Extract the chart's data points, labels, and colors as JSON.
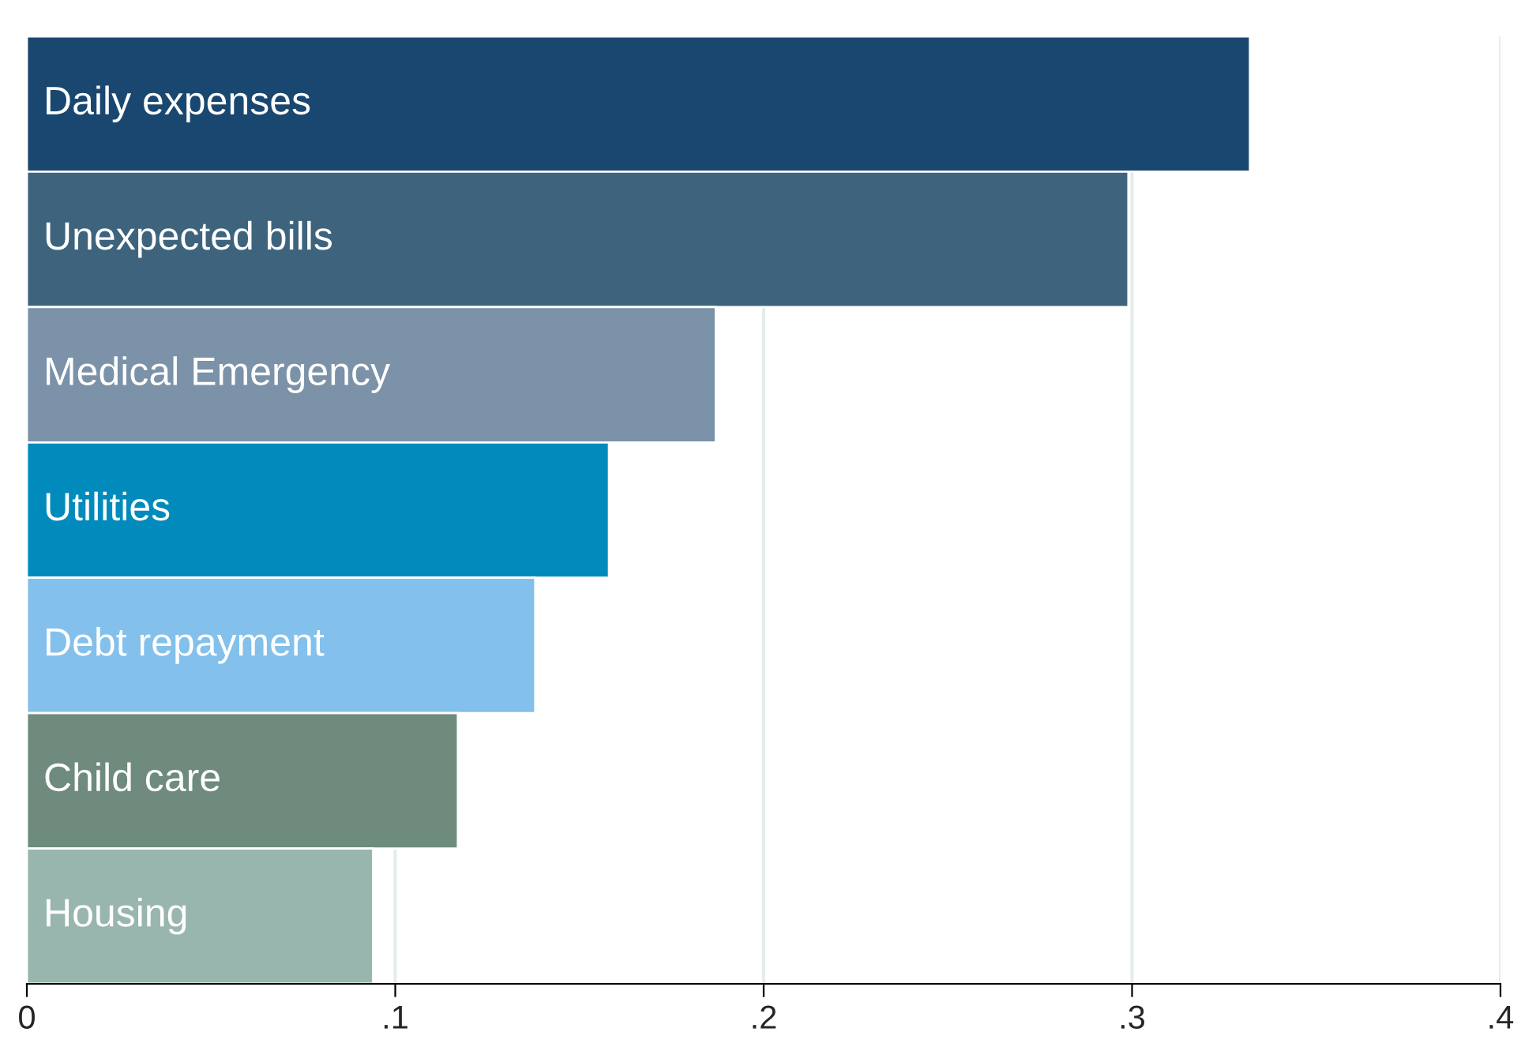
{
  "chart_data": {
    "type": "bar",
    "orientation": "horizontal",
    "categories": [
      "Daily expenses",
      "Unexpected bills",
      "Medical Emergency",
      "Utilities",
      "Debt repayment",
      "Child care",
      "Housing"
    ],
    "values": [
      0.332,
      0.299,
      0.187,
      0.158,
      0.138,
      0.117,
      0.094
    ],
    "colors": [
      "#1a476f",
      "#3e647d",
      "#7b92a8",
      "#008bbc",
      "#83c0eb",
      "#6e8b7d",
      "#98b6ae"
    ],
    "xlim": [
      0,
      0.4
    ],
    "xticks": [
      0,
      {
        "value": 0.1,
        "label": ".1"
      },
      {
        "value": 0.2,
        "label": ".2"
      },
      {
        "value": 0.3,
        "label": ".3"
      },
      {
        "value": 0.4,
        "label": ".4"
      }
    ],
    "grid": "x"
  }
}
